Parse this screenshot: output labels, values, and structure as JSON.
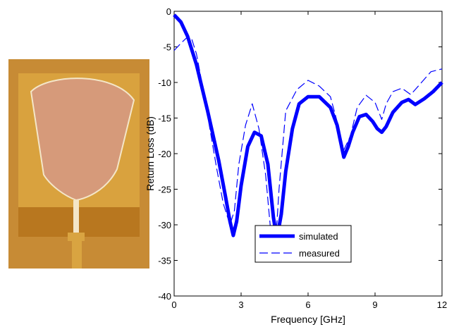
{
  "photo": {
    "subject": "antenna-prototype-photo",
    "colors": {
      "background": "#c78b35",
      "substrate_top": "#d9a23e",
      "substrate_bottom": "#b8771f",
      "patch": "#d69a7a",
      "patch_edge": "#f4e6c8",
      "ground": "#a25a23",
      "connector": "#d9a441"
    }
  },
  "chart_data": {
    "type": "line",
    "title": "",
    "xlabel": "Frequency [GHz]",
    "ylabel": "Return Loss (dB)",
    "xlim": [
      0,
      12
    ],
    "ylim": [
      -40,
      0
    ],
    "xticks": [
      0,
      3,
      6,
      9,
      12
    ],
    "yticks": [
      0,
      -5,
      -10,
      -15,
      -20,
      -25,
      -30,
      -35,
      -40
    ],
    "grid": false,
    "legend_position": "bottom-center",
    "series": [
      {
        "name": "simulated",
        "style": "solid-thick",
        "color": "#0000ff",
        "x": [
          0,
          0.3,
          0.6,
          1.0,
          1.5,
          2.0,
          2.3,
          2.5,
          2.65,
          2.8,
          3.0,
          3.3,
          3.6,
          3.9,
          4.2,
          4.45,
          4.6,
          4.8,
          5.0,
          5.3,
          5.6,
          6.0,
          6.5,
          7.0,
          7.3,
          7.6,
          7.8,
          8.0,
          8.3,
          8.6,
          8.9,
          9.1,
          9.3,
          9.5,
          9.8,
          10.2,
          10.5,
          10.8,
          11.2,
          11.6,
          12.0
        ],
        "y": [
          -0.5,
          -1.5,
          -3.5,
          -7.5,
          -14,
          -21,
          -26,
          -29.5,
          -31.5,
          -29.5,
          -24.5,
          -19,
          -17,
          -17.5,
          -21.5,
          -29,
          -32,
          -28.5,
          -22.5,
          -16.5,
          -13,
          -12,
          -12,
          -13.5,
          -16,
          -20.5,
          -19,
          -17,
          -14.8,
          -14.5,
          -15.5,
          -16.5,
          -17,
          -16.2,
          -14.2,
          -12.8,
          -12.4,
          -13.1,
          -12.3,
          -11.3,
          -10
        ]
      },
      {
        "name": "measured",
        "style": "dashed-thin",
        "color": "#0000ff",
        "x": [
          0,
          0.3,
          0.6,
          0.8,
          1.0,
          1.3,
          1.6,
          1.9,
          2.2,
          2.5,
          2.7,
          2.9,
          3.2,
          3.5,
          3.8,
          4.1,
          4.3,
          4.5,
          4.7,
          5.0,
          5.5,
          6.0,
          6.5,
          7.0,
          7.3,
          7.6,
          7.9,
          8.2,
          8.6,
          9.0,
          9.3,
          9.5,
          9.8,
          10.2,
          10.6,
          11.0,
          11.5,
          12.0
        ],
        "y": [
          -5.5,
          -4.5,
          -3.6,
          -4,
          -6,
          -11,
          -16.5,
          -22,
          -27,
          -30,
          -28,
          -21.5,
          -16,
          -13,
          -16.5,
          -23,
          -30,
          -35,
          -25,
          -14,
          -11,
          -9.7,
          -10.5,
          -12,
          -15.5,
          -19.5,
          -17.5,
          -13.5,
          -11.8,
          -12.8,
          -15.2,
          -13,
          -11.3,
          -10.8,
          -11.7,
          -10.3,
          -8.5,
          -8.1
        ]
      }
    ]
  }
}
